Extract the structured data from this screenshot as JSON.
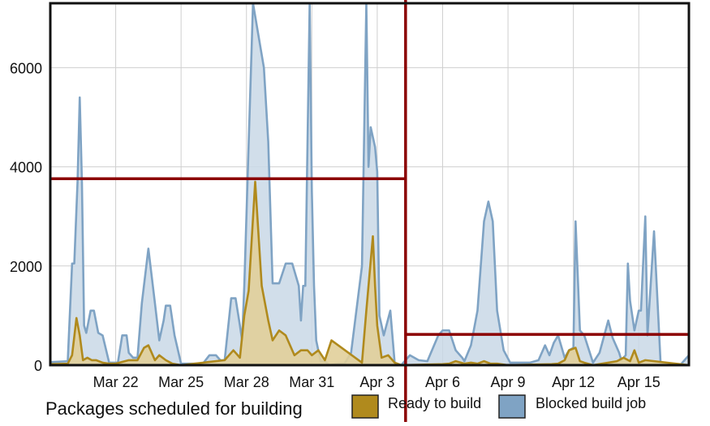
{
  "chart_data": {
    "type": "area",
    "title": "Packages scheduled for building",
    "xlabel": "",
    "ylabel": "",
    "x_unit": "days since Mar 19",
    "x_tick_labels": [
      "Mar 22",
      "Mar 25",
      "Mar 28",
      "Mar 31",
      "Apr 3",
      "Apr 6",
      "Apr 9",
      "Apr 12",
      "Apr 15"
    ],
    "x_tick_positions": [
      3,
      6,
      9,
      12,
      15,
      18,
      21,
      24,
      27
    ],
    "y_tick_labels": [
      "0",
      "2000",
      "4000",
      "6000"
    ],
    "y_tick_values": [
      0,
      2000,
      4000,
      6000
    ],
    "xlim": [
      0,
      29.3
    ],
    "ylim": [
      0,
      7300
    ],
    "grid": true,
    "legend": "bottom",
    "series": [
      {
        "name": "Blocked build job",
        "color": "#7fa3c4",
        "fill": "#c9d8e6",
        "x": [
          0,
          0.8,
          1.0,
          1.1,
          1.25,
          1.35,
          1.45,
          1.55,
          1.65,
          1.85,
          2.0,
          2.2,
          2.4,
          2.7,
          3.1,
          3.3,
          3.5,
          3.6,
          3.8,
          4.0,
          4.2,
          4.5,
          4.8,
          5.0,
          5.2,
          5.3,
          5.5,
          5.7,
          6.0,
          6.3,
          7.0,
          7.3,
          7.6,
          7.8,
          8.0,
          8.3,
          8.5,
          8.7,
          8.8,
          8.9,
          9.3,
          9.8,
          10.0,
          10.2,
          10.5,
          10.8,
          11.1,
          11.4,
          11.5,
          11.6,
          11.7,
          11.9,
          12.0,
          12.1,
          12.2,
          12.4,
          12.6,
          12.8,
          13.2,
          13.5,
          13.8,
          14.3,
          14.5,
          14.6,
          14.7,
          14.9,
          15.0,
          15.1,
          15.3,
          15.6,
          15.8,
          16.1,
          16.3,
          16.5,
          16.9,
          17.3,
          17.8,
          18.0,
          18.3,
          18.6,
          18.9,
          19.0,
          19.3,
          19.6,
          19.9,
          20.1,
          20.3,
          20.5,
          20.8,
          21.1,
          21.3,
          22.0,
          22.4,
          22.7,
          22.9,
          23.1,
          23.3,
          23.6,
          23.8,
          24.0,
          24.1,
          24.3,
          24.5,
          24.9,
          25.2,
          25.6,
          25.8,
          26.1,
          26.2,
          26.4,
          26.5,
          26.6,
          26.8,
          27.0,
          27.1,
          27.3,
          27.4,
          27.7,
          28.0,
          28.5,
          28.9,
          29.3
        ],
        "y": [
          60,
          80,
          2050,
          2050,
          3700,
          5400,
          3700,
          800,
          650,
          1100,
          1100,
          650,
          600,
          50,
          50,
          600,
          600,
          250,
          150,
          150,
          1250,
          2350,
          1250,
          500,
          900,
          1200,
          1200,
          600,
          30,
          30,
          30,
          200,
          200,
          100,
          100,
          1350,
          1350,
          800,
          500,
          1600,
          7300,
          6000,
          4500,
          1650,
          1650,
          2050,
          2050,
          1600,
          900,
          1600,
          1600,
          7300,
          3500,
          1600,
          500,
          80,
          80,
          0,
          30,
          30,
          250,
          2000,
          7300,
          4000,
          4800,
          4400,
          3900,
          1000,
          600,
          1100,
          50,
          0,
          100,
          200,
          100,
          80,
          600,
          700,
          700,
          300,
          150,
          80,
          400,
          1100,
          2900,
          3300,
          2900,
          1100,
          300,
          50,
          50,
          50,
          100,
          400,
          200,
          450,
          600,
          150,
          300,
          350,
          2900,
          700,
          600,
          50,
          250,
          900,
          550,
          250,
          100,
          200,
          2050,
          1300,
          700,
          1100,
          1100,
          3000,
          600,
          2700,
          50,
          0,
          0,
          200
        ]
      },
      {
        "name": "Ready to build",
        "color": "#b08a1d",
        "fill": "#e1cf9a",
        "x": [
          0,
          0.8,
          1.0,
          1.2,
          1.35,
          1.5,
          1.7,
          1.9,
          2.1,
          2.4,
          2.7,
          3.0,
          3.6,
          4.0,
          4.3,
          4.5,
          4.8,
          5.0,
          5.3,
          5.6,
          6.0,
          8.0,
          8.4,
          8.7,
          8.9,
          9.1,
          9.4,
          9.7,
          10.0,
          10.2,
          10.5,
          10.8,
          11.2,
          11.5,
          11.8,
          12.0,
          12.3,
          12.6,
          12.9,
          14.3,
          14.5,
          14.8,
          14.9,
          15.0,
          15.2,
          15.5,
          15.8,
          16.1,
          18.0,
          18.3,
          18.6,
          19.0,
          19.3,
          19.6,
          19.9,
          20.2,
          20.5,
          21.0,
          23.0,
          23.3,
          23.6,
          23.8,
          24.1,
          24.3,
          24.5,
          24.9,
          26.0,
          26.3,
          26.6,
          26.8,
          27.0,
          27.3,
          29.3
        ],
        "y": [
          20,
          30,
          200,
          950,
          600,
          100,
          150,
          100,
          100,
          50,
          30,
          30,
          100,
          100,
          350,
          400,
          100,
          200,
          100,
          30,
          0,
          100,
          300,
          150,
          1000,
          1500,
          3700,
          1600,
          900,
          500,
          700,
          600,
          200,
          300,
          300,
          200,
          300,
          100,
          500,
          50,
          1100,
          2600,
          1600,
          800,
          150,
          200,
          50,
          0,
          20,
          30,
          80,
          30,
          50,
          30,
          80,
          30,
          30,
          0,
          20,
          30,
          100,
          300,
          350,
          80,
          50,
          0,
          80,
          150,
          80,
          300,
          50,
          100,
          0
        ]
      }
    ],
    "reference_lines": [
      {
        "x_range": [
          0,
          16.3
        ],
        "y": 3760,
        "color": "#8b0000"
      },
      {
        "x_range": [
          16.3,
          29.3
        ],
        "y": 620,
        "color": "#8b0000"
      }
    ],
    "vertical_line": {
      "x": 16.3,
      "color": "#8b0000"
    }
  }
}
